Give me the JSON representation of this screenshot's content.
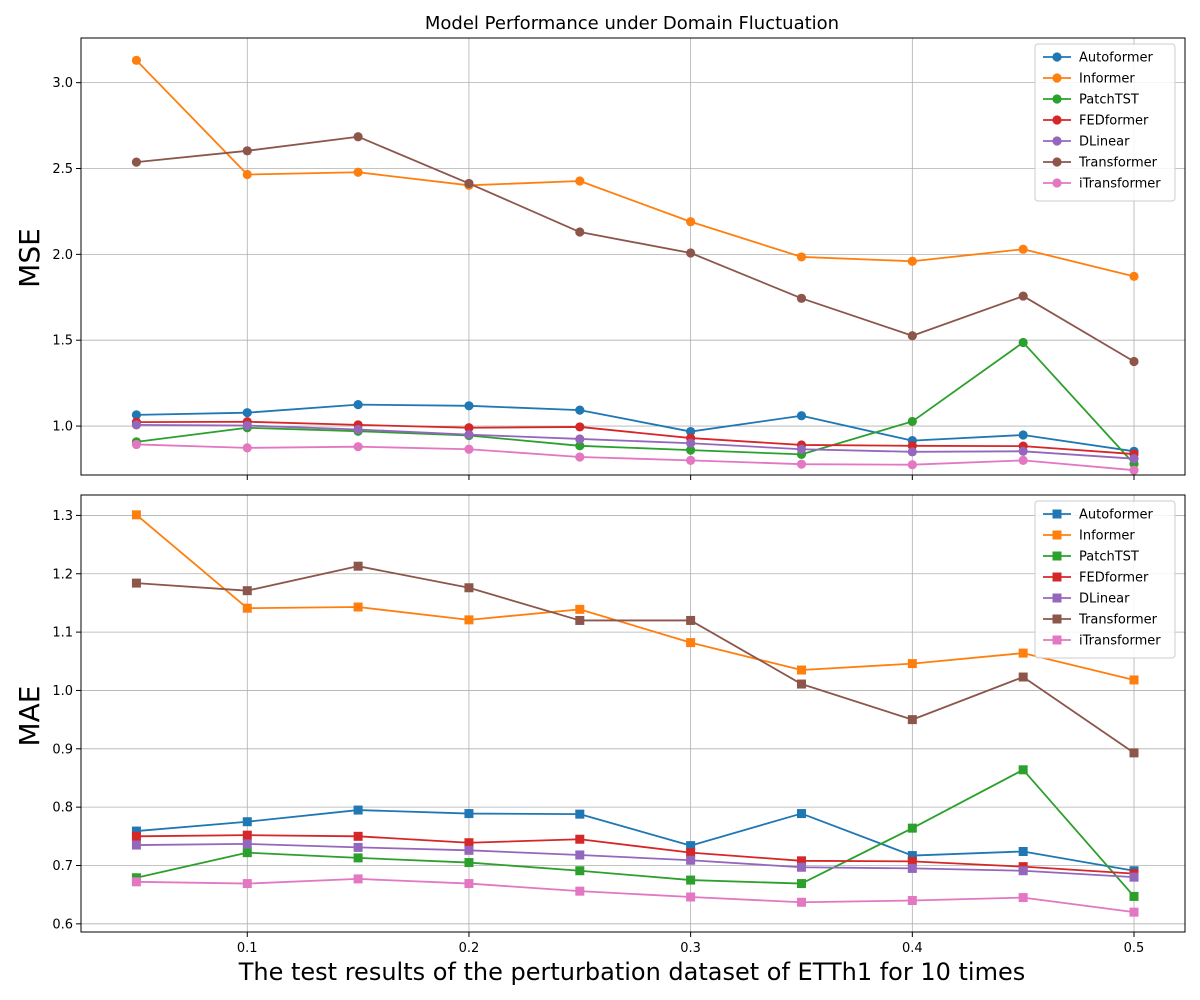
{
  "chart_data": [
    {
      "type": "line",
      "marker": "circle",
      "title": "Model Performance under Domain Fluctuation",
      "ylabel": "MSE",
      "xlabel": "",
      "xlim": [
        0.025,
        0.523
      ],
      "ylim": [
        0.715,
        3.26
      ],
      "xticks": [
        0.1,
        0.2,
        0.3,
        0.4,
        0.5
      ],
      "yticks": [
        1.0,
        1.5,
        2.0,
        2.5,
        3.0
      ],
      "grid": true,
      "legend": "top-right",
      "x": [
        0.05,
        0.1,
        0.15,
        0.2,
        0.25,
        0.3,
        0.35,
        0.4,
        0.45,
        0.5
      ],
      "series": [
        {
          "name": "Autoformer",
          "color": "#1f77b4",
          "values": [
            1.065,
            1.078,
            1.125,
            1.118,
            1.093,
            0.968,
            1.06,
            0.915,
            0.948,
            0.853
          ]
        },
        {
          "name": "Informer",
          "color": "#ff7f0e",
          "values": [
            3.13,
            2.465,
            2.478,
            2.402,
            2.427,
            2.19,
            1.985,
            1.96,
            2.03,
            1.872
          ]
        },
        {
          "name": "PatchTST",
          "color": "#2ca02c",
          "values": [
            0.908,
            0.99,
            0.97,
            0.945,
            0.885,
            0.86,
            0.835,
            1.027,
            1.487,
            0.78
          ]
        },
        {
          "name": "FEDformer",
          "color": "#d62728",
          "values": [
            1.023,
            1.025,
            1.007,
            0.99,
            0.995,
            0.93,
            0.89,
            0.885,
            0.883,
            0.837
          ]
        },
        {
          "name": "DLinear",
          "color": "#9467bd",
          "values": [
            1.007,
            1.003,
            0.98,
            0.95,
            0.925,
            0.9,
            0.865,
            0.85,
            0.853,
            0.81
          ]
        },
        {
          "name": "Transformer",
          "color": "#8c564b",
          "values": [
            2.537,
            2.603,
            2.685,
            2.413,
            2.13,
            2.008,
            1.744,
            1.526,
            1.757,
            1.376
          ]
        },
        {
          "name": "iTransformer",
          "color": "#e377c2",
          "values": [
            0.893,
            0.873,
            0.88,
            0.865,
            0.82,
            0.8,
            0.778,
            0.775,
            0.8,
            0.743
          ]
        }
      ]
    },
    {
      "type": "line",
      "marker": "square",
      "title": "",
      "ylabel": "MAE",
      "xlabel": "The test results of the perturbation dataset of ETTh1 for 10 times",
      "xlim": [
        0.025,
        0.523
      ],
      "ylim": [
        0.586,
        1.335
      ],
      "xticks": [
        0.1,
        0.2,
        0.3,
        0.4,
        0.5
      ],
      "yticks": [
        0.6,
        0.7,
        0.8,
        0.9,
        1.0,
        1.1,
        1.2,
        1.3
      ],
      "grid": true,
      "legend": "top-right",
      "x": [
        0.05,
        0.1,
        0.15,
        0.2,
        0.25,
        0.3,
        0.35,
        0.4,
        0.45,
        0.5
      ],
      "series": [
        {
          "name": "Autoformer",
          "color": "#1f77b4",
          "values": [
            0.759,
            0.775,
            0.795,
            0.789,
            0.788,
            0.734,
            0.789,
            0.717,
            0.724,
            0.691
          ]
        },
        {
          "name": "Informer",
          "color": "#ff7f0e",
          "values": [
            1.301,
            1.141,
            1.143,
            1.121,
            1.139,
            1.082,
            1.035,
            1.046,
            1.064,
            1.018
          ]
        },
        {
          "name": "PatchTST",
          "color": "#2ca02c",
          "values": [
            0.679,
            0.722,
            0.713,
            0.705,
            0.691,
            0.675,
            0.669,
            0.764,
            0.864,
            0.647
          ]
        },
        {
          "name": "FEDformer",
          "color": "#d62728",
          "values": [
            0.75,
            0.752,
            0.75,
            0.739,
            0.745,
            0.722,
            0.708,
            0.707,
            0.698,
            0.686
          ]
        },
        {
          "name": "DLinear",
          "color": "#9467bd",
          "values": [
            0.735,
            0.737,
            0.731,
            0.726,
            0.718,
            0.709,
            0.697,
            0.695,
            0.691,
            0.68
          ]
        },
        {
          "name": "Transformer",
          "color": "#8c564b",
          "values": [
            1.184,
            1.171,
            1.213,
            1.176,
            1.12,
            1.12,
            1.011,
            0.95,
            1.023,
            0.893
          ]
        },
        {
          "name": "iTransformer",
          "color": "#e377c2",
          "values": [
            0.672,
            0.669,
            0.677,
            0.669,
            0.656,
            0.646,
            0.637,
            0.64,
            0.645,
            0.62
          ]
        }
      ]
    }
  ],
  "chart_text": {
    "title": "Model Performance under Domain Fluctuation",
    "top_ylabel": "MSE",
    "bottom_ylabel": "MAE",
    "xlabel": "The test results of the perturbation dataset of ETTh1 for 10 times"
  }
}
